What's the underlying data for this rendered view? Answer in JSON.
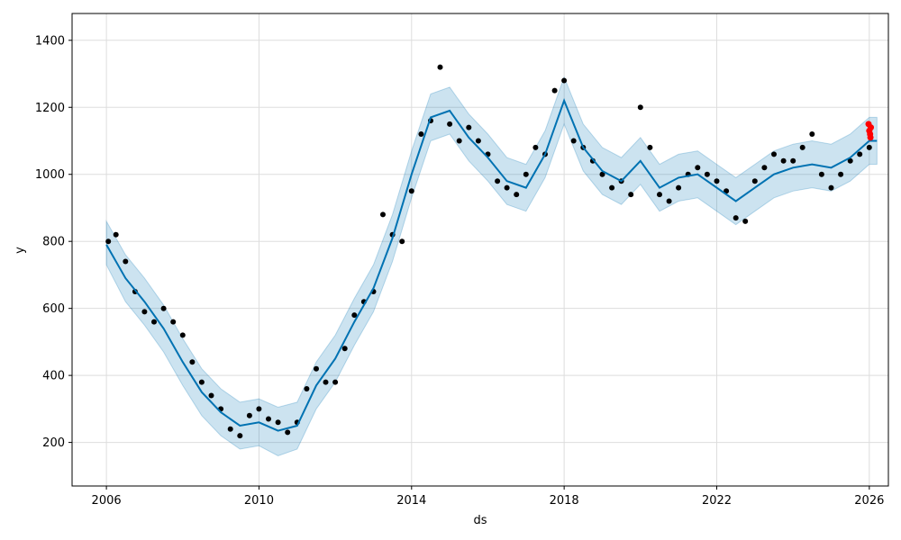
{
  "chart_data": {
    "type": "scatter",
    "title": "",
    "xlabel": "ds",
    "ylabel": "y",
    "xlim": [
      2005.1,
      2026.5
    ],
    "ylim": [
      70,
      1480
    ],
    "x_ticks": [
      2006,
      2010,
      2014,
      2018,
      2022,
      2026
    ],
    "x_tick_labels": [
      "2006",
      "2010",
      "2014",
      "2018",
      "2022",
      "2026"
    ],
    "y_ticks": [
      200,
      400,
      600,
      800,
      1000,
      1200,
      1400
    ],
    "y_tick_labels": [
      "200",
      "400",
      "600",
      "800",
      "1000",
      "1200",
      "1400"
    ],
    "grid": true,
    "legend": "none",
    "colors": {
      "observed": "#000000",
      "forecast": "#0072B2",
      "uncertainty": "#0072B2",
      "highlight": "#ff0000"
    },
    "series": [
      {
        "kind": "observed",
        "x": [
          2006.05,
          2006.25,
          2006.5,
          2006.75,
          2007.0,
          2007.25,
          2007.5,
          2007.75,
          2008.0,
          2008.25,
          2008.5,
          2008.75,
          2009.0,
          2009.25,
          2009.5,
          2009.75,
          2010.0,
          2010.25,
          2010.5,
          2010.75,
          2011.0,
          2011.25,
          2011.5,
          2011.75,
          2012.0,
          2012.25,
          2012.5,
          2012.75,
          2013.0,
          2013.25,
          2013.5,
          2013.75,
          2014.0,
          2014.25,
          2014.5,
          2014.75,
          2015.0,
          2015.25,
          2015.5,
          2015.75,
          2016.0,
          2016.25,
          2016.5,
          2016.75,
          2017.0,
          2017.25,
          2017.5,
          2017.75,
          2018.0,
          2018.25,
          2018.5,
          2018.75,
          2019.0,
          2019.25,
          2019.5,
          2019.75,
          2020.0,
          2020.25,
          2020.5,
          2020.75,
          2021.0,
          2021.25,
          2021.5,
          2021.75,
          2022.0,
          2022.25,
          2022.5,
          2022.75,
          2023.0,
          2023.25,
          2023.5,
          2023.75,
          2024.0,
          2024.25,
          2024.5,
          2024.75,
          2025.0,
          2025.25,
          2025.5,
          2025.75,
          2026.0
        ],
        "y": [
          800,
          820,
          740,
          650,
          590,
          560,
          600,
          560,
          520,
          440,
          380,
          340,
          300,
          240,
          220,
          280,
          300,
          270,
          260,
          230,
          260,
          360,
          420,
          380,
          380,
          480,
          580,
          620,
          650,
          880,
          820,
          800,
          950,
          1120,
          1160,
          1320,
          1150,
          1100,
          1140,
          1100,
          1060,
          980,
          960,
          940,
          1000,
          1080,
          1060,
          1250,
          1280,
          1100,
          1080,
          1040,
          1000,
          960,
          980,
          940,
          1200,
          1080,
          940,
          920,
          960,
          1000,
          1020,
          1000,
          980,
          950,
          870,
          860,
          980,
          1020,
          1060,
          1040,
          1040,
          1080,
          1120,
          1000,
          960,
          1000,
          1040,
          1060,
          1080
        ]
      },
      {
        "kind": "highlight",
        "x": [
          2025.98,
          2026.0,
          2026.02,
          2026.03,
          2026.04
        ],
        "y": [
          1150,
          1130,
          1120,
          1110,
          1140
        ]
      },
      {
        "kind": "forecast",
        "x": [
          2006.0,
          2006.5,
          2007.0,
          2007.5,
          2008.0,
          2008.5,
          2009.0,
          2009.5,
          2010.0,
          2010.5,
          2011.0,
          2011.5,
          2012.0,
          2012.5,
          2013.0,
          2013.5,
          2014.0,
          2014.5,
          2015.0,
          2015.5,
          2016.0,
          2016.5,
          2017.0,
          2017.5,
          2018.0,
          2018.5,
          2019.0,
          2019.5,
          2020.0,
          2020.5,
          2021.0,
          2021.5,
          2022.0,
          2022.5,
          2023.0,
          2023.5,
          2024.0,
          2024.5,
          2025.0,
          2025.5,
          2026.0,
          2026.2
        ],
        "y": [
          790,
          690,
          620,
          540,
          440,
          350,
          290,
          250,
          260,
          235,
          250,
          370,
          450,
          560,
          660,
          810,
          1000,
          1170,
          1190,
          1110,
          1050,
          980,
          960,
          1060,
          1220,
          1080,
          1010,
          980,
          1040,
          960,
          990,
          1000,
          960,
          920,
          960,
          1000,
          1020,
          1030,
          1020,
          1050,
          1100,
          1100
        ]
      },
      {
        "kind": "uncertainty",
        "x": [
          2006.0,
          2006.5,
          2007.0,
          2007.5,
          2008.0,
          2008.5,
          2009.0,
          2009.5,
          2010.0,
          2010.5,
          2011.0,
          2011.5,
          2012.0,
          2012.5,
          2013.0,
          2013.5,
          2014.0,
          2014.5,
          2015.0,
          2015.5,
          2016.0,
          2016.5,
          2017.0,
          2017.5,
          2018.0,
          2018.5,
          2019.0,
          2019.5,
          2020.0,
          2020.5,
          2021.0,
          2021.5,
          2022.0,
          2022.5,
          2023.0,
          2023.5,
          2024.0,
          2024.5,
          2025.0,
          2025.5,
          2026.0,
          2026.2
        ],
        "lower": [
          730,
          620,
          550,
          470,
          370,
          280,
          220,
          180,
          190,
          160,
          180,
          300,
          380,
          490,
          590,
          740,
          930,
          1100,
          1120,
          1040,
          980,
          910,
          890,
          990,
          1150,
          1010,
          940,
          910,
          970,
          890,
          920,
          930,
          890,
          850,
          890,
          930,
          950,
          960,
          950,
          980,
          1030,
          1030
        ],
        "upper": [
          860,
          760,
          690,
          610,
          510,
          420,
          360,
          320,
          330,
          305,
          320,
          440,
          520,
          630,
          730,
          880,
          1070,
          1240,
          1260,
          1180,
          1120,
          1050,
          1030,
          1130,
          1290,
          1150,
          1080,
          1050,
          1110,
          1030,
          1060,
          1070,
          1030,
          990,
          1030,
          1070,
          1090,
          1100,
          1090,
          1120,
          1170,
          1170
        ]
      }
    ]
  }
}
